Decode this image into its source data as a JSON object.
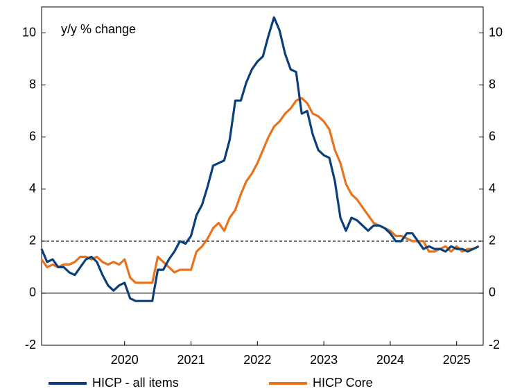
{
  "chart_data": {
    "type": "line",
    "annotation": "y/y % change",
    "x": [
      2019.25,
      2019.333,
      2019.417,
      2019.5,
      2019.583,
      2019.667,
      2019.75,
      2019.833,
      2019.917,
      2020,
      2020.083,
      2020.167,
      2020.25,
      2020.333,
      2020.417,
      2020.5,
      2020.583,
      2020.667,
      2020.75,
      2020.833,
      2020.917,
      2021,
      2021.083,
      2021.167,
      2021.25,
      2021.333,
      2021.417,
      2021.5,
      2021.583,
      2021.667,
      2021.75,
      2021.833,
      2021.917,
      2022,
      2022.083,
      2022.167,
      2022.25,
      2022.333,
      2022.417,
      2022.5,
      2022.583,
      2022.667,
      2022.75,
      2022.833,
      2022.917,
      2023,
      2023.083,
      2023.167,
      2023.25,
      2023.333,
      2023.417,
      2023.5,
      2023.583,
      2023.667,
      2023.75,
      2023.833,
      2023.917,
      2024,
      2024.083,
      2024.167,
      2024.25,
      2024.333,
      2024.417,
      2024.5,
      2024.583,
      2024.667,
      2024.75,
      2024.833,
      2024.917,
      2025,
      2025.083,
      2025.167,
      2025.25,
      2025.333,
      2025.417,
      2025.5,
      2025.583,
      2025.667,
      2025.75,
      2025.833
    ],
    "series": [
      {
        "name": "HICP - all items",
        "color": "#0b3f7a",
        "values": [
          1.7,
          1.2,
          1.3,
          1.0,
          1.0,
          0.8,
          0.7,
          1.0,
          1.3,
          1.4,
          1.2,
          0.7,
          0.3,
          0.1,
          0.3,
          0.4,
          -0.2,
          -0.3,
          -0.3,
          -0.3,
          -0.3,
          0.9,
          0.9,
          1.3,
          1.6,
          2.0,
          1.9,
          2.2,
          3.0,
          3.4,
          4.1,
          4.9,
          5.0,
          5.1,
          5.9,
          7.4,
          7.4,
          8.1,
          8.6,
          8.9,
          9.1,
          9.9,
          10.6,
          10.1,
          9.2,
          8.6,
          8.5,
          6.9,
          7.0,
          6.1,
          5.5,
          5.3,
          5.2,
          4.3,
          2.9,
          2.4,
          2.9,
          2.8,
          2.6,
          2.4,
          2.6,
          2.6,
          2.5,
          2.3,
          2.0,
          2.0,
          2.3,
          2.3,
          2.0,
          1.7,
          1.8,
          1.7,
          1.7,
          1.6,
          1.8,
          1.7,
          1.7,
          1.6,
          1.7,
          1.8
        ]
      },
      {
        "name": "HICP Core",
        "color": "#e8731c",
        "values": [
          1.3,
          1.0,
          1.1,
          1.0,
          1.1,
          1.1,
          1.2,
          1.4,
          1.4,
          1.3,
          1.4,
          1.2,
          1.1,
          1.2,
          1.1,
          1.3,
          0.6,
          0.4,
          0.4,
          0.4,
          0.4,
          1.4,
          1.2,
          1.0,
          0.8,
          0.9,
          0.9,
          0.9,
          1.6,
          1.8,
          2.1,
          2.5,
          2.7,
          2.4,
          2.9,
          3.2,
          3.8,
          4.3,
          4.6,
          5.0,
          5.5,
          6.0,
          6.4,
          6.6,
          6.9,
          7.1,
          7.4,
          7.5,
          7.3,
          6.9,
          6.8,
          6.6,
          6.3,
          5.5,
          5.0,
          4.2,
          3.8,
          3.6,
          3.3,
          3.0,
          2.7,
          2.6,
          2.5,
          2.4,
          2.2,
          2.2,
          2.1,
          2.0,
          2.0,
          2.0,
          1.6,
          1.6,
          1.7,
          1.8,
          1.6,
          1.8,
          1.6,
          1.7,
          1.7,
          1.8
        ]
      }
    ],
    "xlim": [
      2019.25,
      2025.9
    ],
    "xticks": [
      {
        "value": 2020.5,
        "label": "2020"
      },
      {
        "value": 2021.5,
        "label": "2021"
      },
      {
        "value": 2022.5,
        "label": "2022"
      },
      {
        "value": 2023.5,
        "label": "2023"
      },
      {
        "value": 2024.5,
        "label": "2024"
      },
      {
        "value": 2025.5,
        "label": "2025"
      }
    ],
    "ylim": [
      -2,
      11
    ],
    "yticks": [
      -2,
      0,
      2,
      4,
      6,
      8,
      10
    ],
    "y2lim": [
      -2,
      11
    ],
    "y2ticks": [
      -2,
      0,
      2,
      4,
      6,
      8,
      10
    ],
    "reference_line": 2,
    "legend": "bottom"
  }
}
